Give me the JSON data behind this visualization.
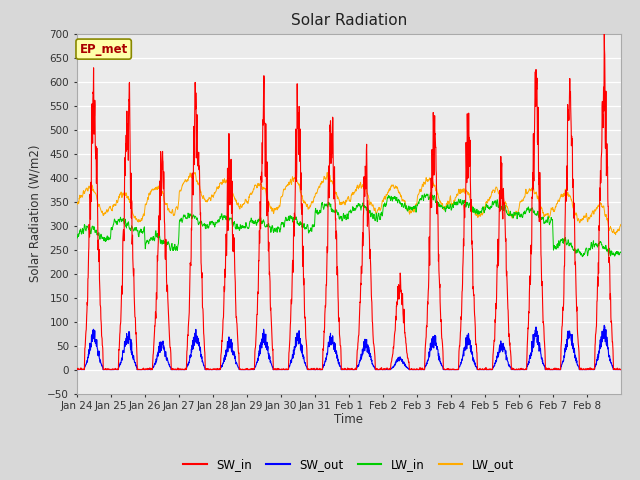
{
  "title": "Solar Radiation",
  "ylabel": "Solar Radiation (W/m2)",
  "xlabel": "Time",
  "annotation": "EP_met",
  "ylim": [
    -50,
    700
  ],
  "yticks": [
    -50,
    0,
    50,
    100,
    150,
    200,
    250,
    300,
    350,
    400,
    450,
    500,
    550,
    600,
    650,
    700
  ],
  "xtick_labels": [
    "Jan 24",
    "Jan 25",
    "Jan 26",
    "Jan 27",
    "Jan 28",
    "Jan 29",
    "Jan 30",
    "Jan 31",
    "Feb 1",
    "Feb 2",
    "Feb 3",
    "Feb 4",
    "Feb 5",
    "Feb 6",
    "Feb 7",
    "Feb 8"
  ],
  "colors": {
    "SW_in": "#ff0000",
    "SW_out": "#0000ff",
    "LW_in": "#00cc00",
    "LW_out": "#ffaa00"
  },
  "bg_color": "#d8d8d8",
  "plot_bg": "#ebebeb",
  "grid_color": "#ffffff",
  "sw_in_peaks": [
    600,
    602,
    445,
    607,
    465,
    583,
    580,
    557,
    448,
    197,
    527,
    517,
    430,
    613,
    635,
    665
  ],
  "lw_in_base": [
    285,
    300,
    265,
    310,
    305,
    300,
    305,
    330,
    330,
    345,
    350,
    340,
    335,
    320,
    255,
    250
  ],
  "lw_out_base": [
    350,
    335,
    350,
    375,
    365,
    355,
    365,
    370,
    355,
    355,
    365,
    345,
    345,
    345,
    335,
    310
  ]
}
